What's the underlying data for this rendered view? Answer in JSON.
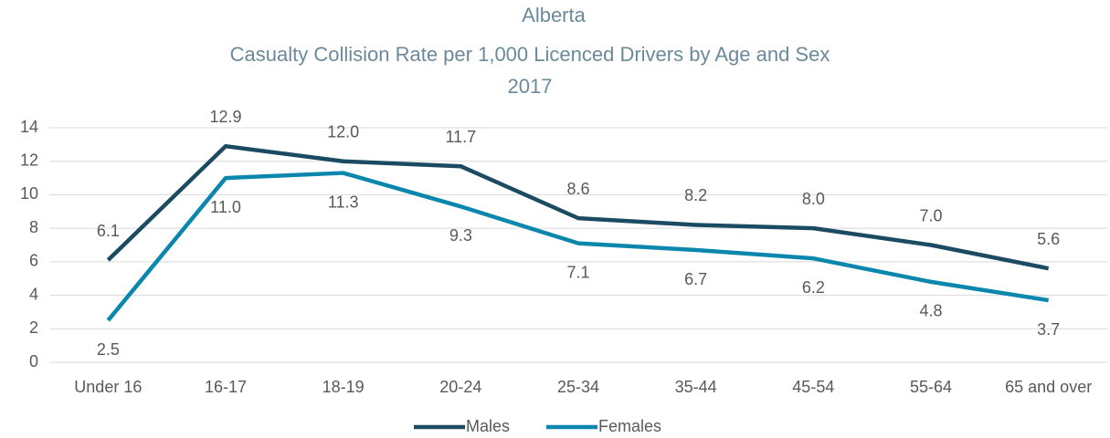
{
  "chart_data": {
    "type": "line",
    "title": [
      "Alberta",
      "Casualty Collision Rate per 1,000 Licenced Drivers by Age and Sex",
      "2017"
    ],
    "categories": [
      "Under 16",
      "16-17",
      "18-19",
      "20-24",
      "25-34",
      "35-44",
      "45-54",
      "55-64",
      "65 and over"
    ],
    "series": [
      {
        "name": "Males",
        "color": "#1b4a63",
        "values": [
          6.1,
          12.9,
          12.0,
          11.7,
          8.6,
          8.2,
          8.0,
          7.0,
          5.6
        ],
        "value_labels": [
          "6.1",
          "12.9",
          "12.0",
          "11.7",
          "8.6",
          "8.2",
          "8.0",
          "7.0",
          "5.6"
        ]
      },
      {
        "name": "Females",
        "color": "#0b87ad",
        "values": [
          2.5,
          11.0,
          11.3,
          9.3,
          7.1,
          6.7,
          6.2,
          4.8,
          3.7
        ],
        "value_labels": [
          "2.5",
          "11.0",
          "11.3",
          "9.3",
          "7.1",
          "6.7",
          "6.2",
          "4.8",
          "3.7"
        ]
      }
    ],
    "ylim": [
      0,
      14
    ],
    "yticks": [
      0,
      2,
      4,
      6,
      8,
      10,
      12,
      14
    ],
    "grid": true,
    "legend": "bottom"
  }
}
